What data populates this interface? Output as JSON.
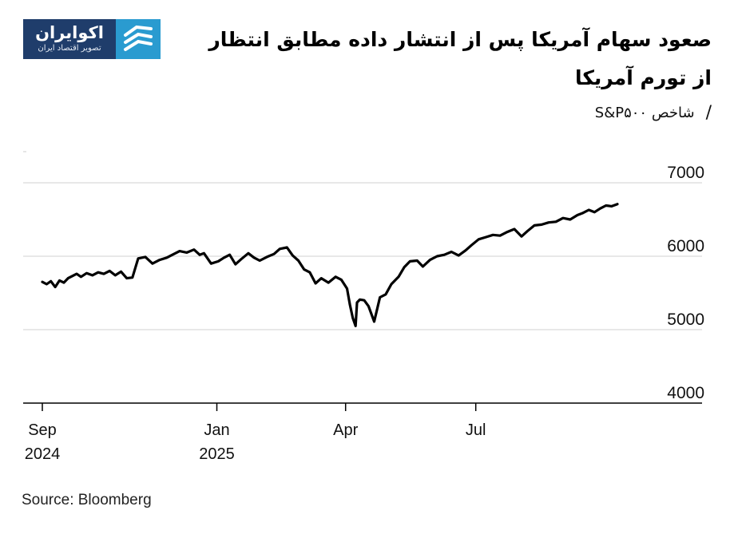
{
  "header": {
    "title": "صعود سهام آمریکا پس از انتشار داده مطابق انتظار از تورم آمریکا",
    "subtitle": "شاخص S&P۵۰۰"
  },
  "logo": {
    "name": "اکوایران",
    "tagline": "تصویر اقتصاد ایران",
    "colors": {
      "background": "#1f3d6b",
      "mark": "#2a9bd0"
    }
  },
  "source": "Source: Bloomberg",
  "chart_data": {
    "type": "line",
    "ylim": [
      4000,
      7000
    ],
    "y_ticks": [
      {
        "value": 4000,
        "label": "4000"
      },
      {
        "value": 5000,
        "label": "5000"
      },
      {
        "value": 6000,
        "label": "6000"
      },
      {
        "value": 7000,
        "label": "7000"
      }
    ],
    "x_ticks": [
      {
        "date": "2024-09-01",
        "label": [
          "Sep",
          "2024"
        ]
      },
      {
        "date": "2025-01-01",
        "label": [
          "Jan",
          "2025"
        ]
      },
      {
        "date": "2025-04-01",
        "label": [
          "Apr",
          ""
        ]
      },
      {
        "date": "2025-07-01",
        "label": [
          "Jul",
          ""
        ]
      }
    ],
    "grid": true,
    "line_color": "#000000",
    "series": [
      {
        "x": [
          "2024-09-01",
          "2024-09-04",
          "2024-09-07",
          "2024-09-10",
          "2024-09-13",
          "2024-09-16",
          "2024-09-19",
          "2024-09-22",
          "2024-09-25",
          "2024-09-28",
          "2024-10-02",
          "2024-10-06",
          "2024-10-10",
          "2024-10-14",
          "2024-10-18",
          "2024-10-22",
          "2024-10-26",
          "2024-10-30",
          "2024-11-03",
          "2024-11-07",
          "2024-11-12",
          "2024-11-17",
          "2024-11-22",
          "2024-11-27",
          "2024-12-02",
          "2024-12-06",
          "2024-12-11",
          "2024-12-16",
          "2024-12-20",
          "2024-12-23",
          "2024-12-28",
          "2025-01-02",
          "2025-01-06",
          "2025-01-10",
          "2025-01-14",
          "2025-01-18",
          "2025-01-23",
          "2025-01-27",
          "2025-01-31",
          "2025-02-05",
          "2025-02-10",
          "2025-02-14",
          "2025-02-19",
          "2025-02-23",
          "2025-02-27",
          "2025-03-03",
          "2025-03-07",
          "2025-03-11",
          "2025-03-15",
          "2025-03-20",
          "2025-03-25",
          "2025-03-29",
          "2025-04-02",
          "2025-04-04",
          "2025-04-06",
          "2025-04-08",
          "2025-04-09",
          "2025-04-11",
          "2025-04-14",
          "2025-04-17",
          "2025-04-21",
          "2025-04-25",
          "2025-04-29",
          "2025-05-03",
          "2025-05-08",
          "2025-05-12",
          "2025-05-16",
          "2025-05-21",
          "2025-05-25",
          "2025-05-30",
          "2025-06-04",
          "2025-06-09",
          "2025-06-14",
          "2025-06-19",
          "2025-06-24",
          "2025-06-28",
          "2025-07-03",
          "2025-07-08",
          "2025-07-13",
          "2025-07-18",
          "2025-07-23",
          "2025-07-28",
          "2025-08-02",
          "2025-08-06",
          "2025-08-11",
          "2025-08-16",
          "2025-08-21",
          "2025-08-26",
          "2025-08-31",
          "2025-09-05",
          "2025-09-10",
          "2025-09-14",
          "2025-09-18",
          "2025-09-22",
          "2025-09-26",
          "2025-09-30",
          "2025-10-04",
          "2025-10-08"
        ],
        "values": [
          5650,
          5620,
          5660,
          5580,
          5670,
          5640,
          5700,
          5730,
          5760,
          5720,
          5770,
          5740,
          5780,
          5760,
          5800,
          5740,
          5790,
          5700,
          5710,
          5970,
          5990,
          5900,
          5950,
          5980,
          6030,
          6070,
          6050,
          6090,
          6020,
          6040,
          5900,
          5930,
          5980,
          6020,
          5890,
          5960,
          6040,
          5980,
          5940,
          5990,
          6030,
          6100,
          6120,
          6010,
          5940,
          5820,
          5780,
          5630,
          5700,
          5640,
          5720,
          5680,
          5560,
          5340,
          5160,
          5050,
          5370,
          5410,
          5400,
          5320,
          5110,
          5440,
          5480,
          5620,
          5720,
          5850,
          5930,
          5940,
          5860,
          5950,
          6000,
          6020,
          6060,
          6010,
          6080,
          6150,
          6230,
          6260,
          6290,
          6280,
          6330,
          6370,
          6270,
          6340,
          6420,
          6430,
          6460,
          6470,
          6520,
          6500,
          6560,
          6590,
          6630,
          6600,
          6650,
          6690,
          6680,
          6710
        ]
      }
    ]
  }
}
